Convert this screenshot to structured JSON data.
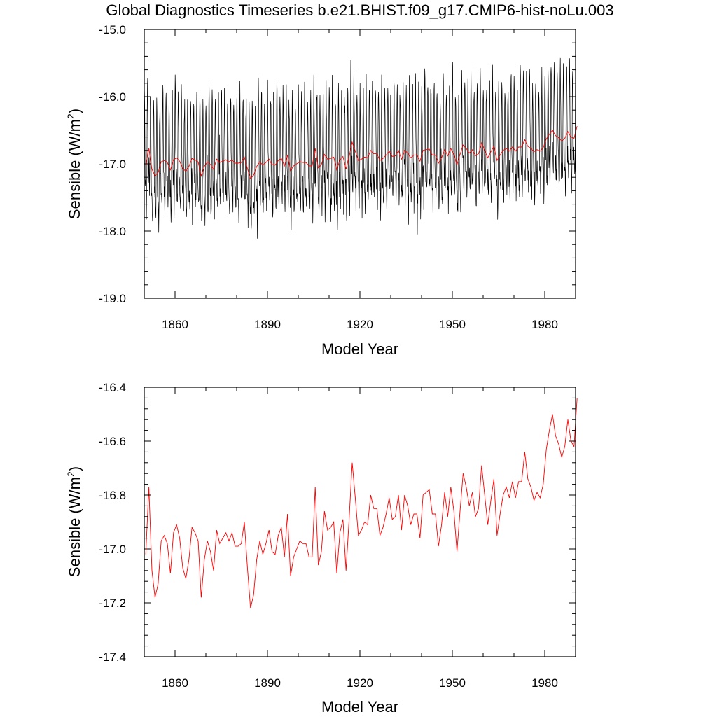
{
  "title": "Global Diagnostics Timeseries b.e21.BHIST.f09_g17.CMIP6-hist-noLu.003",
  "chart_data": [
    {
      "type": "line",
      "panel": "top",
      "xlabel": "Model Year",
      "ylabel": "Sensible (W/m²)",
      "ylabel_main": "Sensible (W/m",
      "ylabel_sup": "2",
      "ylabel_close": ")",
      "xlim": [
        1850,
        1990
      ],
      "ylim": [
        -19.0,
        -15.0
      ],
      "xticks": [
        1860,
        1890,
        1920,
        1950,
        1980
      ],
      "xtick_labels": [
        "1860",
        "1890",
        "1920",
        "1950",
        "1980"
      ],
      "yticks": [
        -15.0,
        -16.0,
        -17.0,
        -18.0,
        -19.0
      ],
      "ytick_labels": [
        "-15.0",
        "-16.0",
        "-17.0",
        "-18.0",
        "-19.0"
      ],
      "series": [
        {
          "color": "#000000",
          "kind": "monthly",
          "x_start": 1850,
          "x_end": 1990,
          "mean_start": -16.98,
          "mean_end": -16.65,
          "seasonal_amplitude": 0.62,
          "noise": 0.22
        },
        {
          "color": "#ff0000",
          "kind": "annual_mean"
        }
      ]
    },
    {
      "type": "line",
      "panel": "bottom",
      "xlabel": "Model Year",
      "ylabel": "Sensible (W/m²)",
      "ylabel_main": "Sensible (W/m",
      "ylabel_sup": "2",
      "ylabel_close": ")",
      "xlim": [
        1850,
        1990
      ],
      "ylim": [
        -17.4,
        -16.4
      ],
      "xticks": [
        1860,
        1890,
        1920,
        1950,
        1980
      ],
      "xtick_labels": [
        "1860",
        "1890",
        "1920",
        "1950",
        "1980"
      ],
      "yticks": [
        -16.4,
        -16.6,
        -16.8,
        -17.0,
        -17.2,
        -17.4
      ],
      "ytick_labels": [
        "-16.4",
        "-16.6",
        "-16.8",
        "-17.0",
        "-17.2",
        "-17.4"
      ],
      "series": [
        {
          "color": "#ff0000",
          "x_start": 1850.5,
          "values": [
            -17.02,
            -16.77,
            -17.08,
            -17.18,
            -17.13,
            -16.97,
            -16.95,
            -16.98,
            -17.09,
            -16.94,
            -16.91,
            -16.96,
            -17.07,
            -17.11,
            -17.04,
            -16.92,
            -16.94,
            -16.97,
            -17.18,
            -17.04,
            -16.97,
            -17.01,
            -17.08,
            -16.93,
            -16.98,
            -16.96,
            -16.94,
            -16.97,
            -16.94,
            -16.99,
            -16.99,
            -16.98,
            -16.9,
            -17.07,
            -17.22,
            -17.17,
            -17.04,
            -16.97,
            -17.02,
            -16.98,
            -16.93,
            -17.01,
            -17.02,
            -16.95,
            -16.92,
            -17.03,
            -16.87,
            -17.1,
            -17.03,
            -17.0,
            -16.97,
            -16.98,
            -16.98,
            -17.03,
            -17.03,
            -16.77,
            -17.06,
            -17.01,
            -16.86,
            -16.93,
            -16.92,
            -16.9,
            -17.09,
            -16.94,
            -16.89,
            -17.08,
            -16.89,
            -16.68,
            -16.81,
            -16.95,
            -16.93,
            -16.9,
            -16.91,
            -16.8,
            -16.85,
            -16.85,
            -16.95,
            -16.92,
            -16.87,
            -16.81,
            -16.89,
            -16.88,
            -16.8,
            -16.93,
            -16.8,
            -16.84,
            -16.91,
            -16.87,
            -16.87,
            -16.96,
            -16.8,
            -16.79,
            -16.78,
            -16.87,
            -16.87,
            -16.99,
            -16.91,
            -16.79,
            -16.88,
            -16.77,
            -16.86,
            -17.01,
            -16.86,
            -16.72,
            -16.77,
            -16.84,
            -16.79,
            -16.88,
            -16.85,
            -16.69,
            -16.8,
            -16.91,
            -16.82,
            -16.74,
            -16.95,
            -16.87,
            -16.8,
            -16.77,
            -16.81,
            -16.75,
            -16.81,
            -16.75,
            -16.75,
            -16.64,
            -16.74,
            -16.77,
            -16.82,
            -16.79,
            -16.81,
            -16.76,
            -16.63,
            -16.56,
            -16.5,
            -16.58,
            -16.61,
            -16.66,
            -16.62,
            -16.52,
            -16.6,
            -16.62,
            -16.44
          ]
        }
      ]
    }
  ]
}
